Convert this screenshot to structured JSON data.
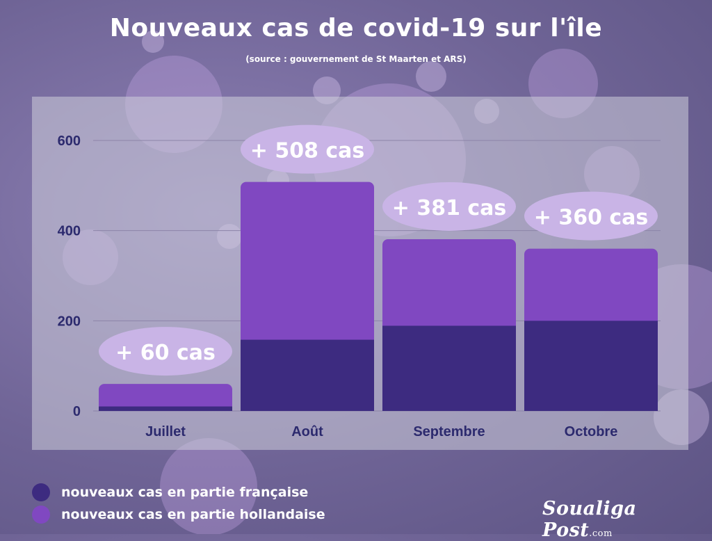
{
  "header": {
    "title": "Nouveaux cas de covid-19 sur l'île",
    "subtitle": "(source :  gouvernement de St Maarten et ARS)"
  },
  "colors": {
    "french": "#3d2b80",
    "dutch": "#8048c1",
    "bubble": "#c9b4e6",
    "axis_text": "#2c2a6e",
    "grid": "#8c84a8"
  },
  "chart_data": {
    "type": "bar",
    "stacked": true,
    "categories": [
      "Juillet",
      "Août",
      "Septembre",
      "Octobre"
    ],
    "series": [
      {
        "name": "nouveaux cas en partie française",
        "values": [
          10,
          158,
          189,
          200
        ]
      },
      {
        "name": "nouveaux cas en partie hollandaise",
        "values": [
          50,
          350,
          192,
          160
        ]
      }
    ],
    "totals_labels": [
      "+  60 cas",
      "+  508 cas",
      "+  381 cas",
      "+  360 cas"
    ],
    "yticks": [
      "0",
      "200",
      "400",
      "600"
    ],
    "ylim": [
      0,
      600
    ],
    "grid": true,
    "legend_position": "bottom-left"
  },
  "legend": {
    "items": [
      {
        "label": "nouveaux cas en partie française",
        "color": "#3d2b80"
      },
      {
        "label": "nouveaux cas en partie hollandaise",
        "color": "#8048c1"
      }
    ]
  },
  "logo": {
    "text": "Soualiga Post",
    "suffix": ".com"
  }
}
